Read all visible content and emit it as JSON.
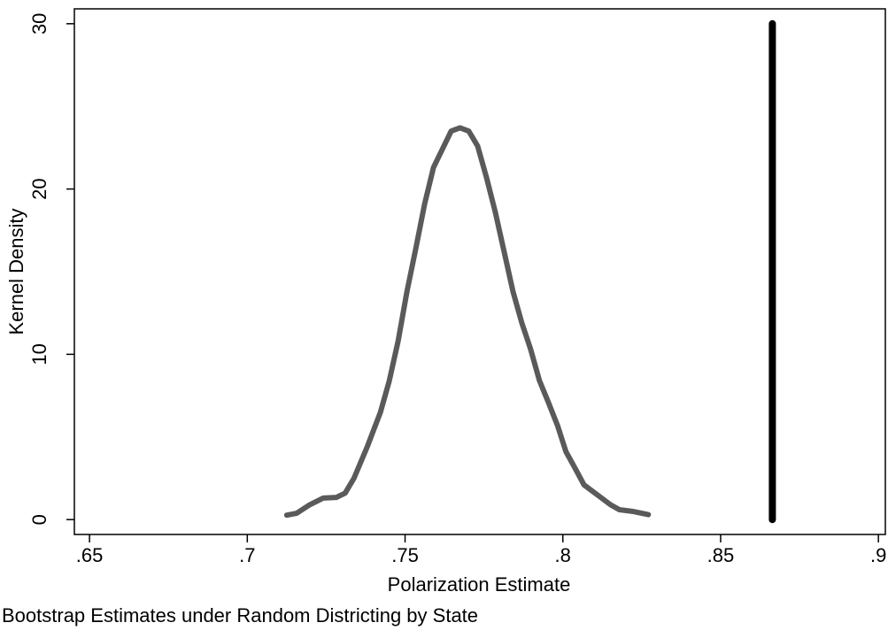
{
  "chart_data": {
    "type": "line",
    "x_label": "Polarization Estimate",
    "y_label": "Kernel Density",
    "note": "Bootstrap Estimates under Random Districting by State",
    "xlim": [
      0.6452,
      0.9022
    ],
    "ylim": [
      -0.9,
      30.9
    ],
    "xticks": [
      {
        "value": 0.65,
        "label": ".65"
      },
      {
        "value": 0.7,
        "label": ".7"
      },
      {
        "value": 0.75,
        "label": ".75"
      },
      {
        "value": 0.8,
        "label": ".8"
      },
      {
        "value": 0.85,
        "label": ".85"
      },
      {
        "value": 0.9,
        "label": ".9"
      }
    ],
    "yticks": [
      0,
      10,
      20,
      30
    ],
    "series": [
      {
        "color": "#5a5a5a",
        "width": 6,
        "x": [
          0.7125,
          0.7156,
          0.7198,
          0.724,
          0.7282,
          0.731,
          0.7338,
          0.738,
          0.7422,
          0.745,
          0.7478,
          0.7506,
          0.7534,
          0.7562,
          0.759,
          0.7618,
          0.7646,
          0.7674,
          0.7702,
          0.773,
          0.7758,
          0.7786,
          0.7814,
          0.7842,
          0.787,
          0.7898,
          0.7926,
          0.7954,
          0.7983,
          0.801,
          0.8039,
          0.8067,
          0.8095,
          0.8123,
          0.8151,
          0.8179,
          0.822,
          0.8271
        ],
        "values": [
          0.27,
          0.38,
          0.9,
          1.3,
          1.34,
          1.6,
          2.5,
          4.4,
          6.5,
          8.4,
          10.8,
          13.8,
          16.4,
          19.1,
          21.3,
          22.4,
          23.5,
          23.7,
          23.5,
          22.6,
          20.7,
          18.6,
          16.2,
          13.8,
          11.9,
          10.3,
          8.4,
          7.1,
          5.7,
          4.1,
          3.1,
          2.1,
          1.7,
          1.3,
          0.9,
          0.6,
          0.5,
          0.3
        ]
      },
      {
        "color": "#000000",
        "width": 8,
        "x": [
          0.8664,
          0.8664
        ],
        "values": [
          0,
          30
        ]
      }
    ]
  }
}
